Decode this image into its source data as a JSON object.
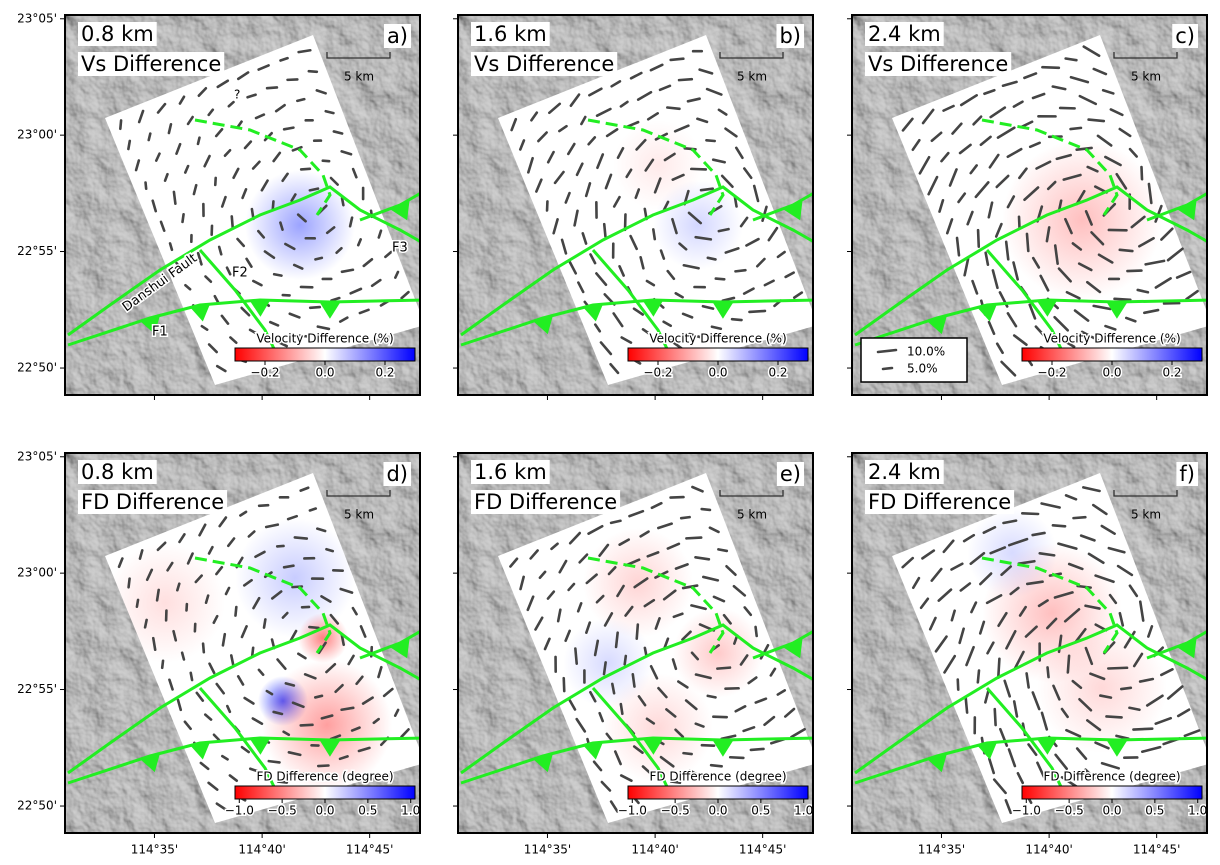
{
  "map": {
    "xlim": [
      114.514,
      114.789
    ],
    "ylim": [
      22.814,
      23.086
    ],
    "xticks": [
      {
        "value": 114.5833,
        "label": "114°35'"
      },
      {
        "value": 114.6667,
        "label": "114°40'"
      },
      {
        "value": 114.75,
        "label": "114°45'"
      }
    ],
    "yticks": [
      {
        "value": 23.0833,
        "label": "23°05'"
      },
      {
        "value": 23.0,
        "label": "23°00'"
      },
      {
        "value": 22.9167,
        "label": "22°55'"
      },
      {
        "value": 22.8333,
        "label": "22°50'"
      }
    ]
  },
  "panels": [
    {
      "depth": "0.8 km",
      "title": "Vs Difference",
      "letter": "a)"
    },
    {
      "depth": "1.6 km",
      "title": "Vs Difference",
      "letter": "b)"
    },
    {
      "depth": "2.4 km",
      "title": "Vs Difference",
      "letter": "c)"
    },
    {
      "depth": "0.8 km",
      "title": "FD Difference",
      "letter": "d)"
    },
    {
      "depth": "1.6 km",
      "title": "FD Difference",
      "letter": "e)"
    },
    {
      "depth": "2.4 km",
      "title": "FD Difference",
      "letter": "f)"
    }
  ],
  "colorbars": {
    "velocity": {
      "title": "Velocity Difference (%)",
      "lim": [
        -0.3,
        0.3
      ],
      "ticks": [
        {
          "value": -0.2,
          "label": "−0.2"
        },
        {
          "value": 0,
          "label": "0.0"
        },
        {
          "value": 0.2,
          "label": "0.2"
        }
      ]
    },
    "fd": {
      "title": "FD Difference (degree)",
      "lim": [
        -1.05,
        1.05
      ],
      "ticks": [
        {
          "value": -1,
          "label": "−1.0"
        },
        {
          "value": -0.5,
          "label": "−0.5"
        },
        {
          "value": 0,
          "label": "0.0"
        },
        {
          "value": 0.5,
          "label": "0.5"
        },
        {
          "value": 1,
          "label": "1.0"
        }
      ]
    }
  },
  "scale_bar": "5 km",
  "legend": [
    "10.0%",
    "5.0%"
  ],
  "fault_labels": {
    "danshui": "Danshui Fault",
    "f1": "F1",
    "f2": "F2",
    "f3": "F3",
    "unknown": "?"
  }
}
